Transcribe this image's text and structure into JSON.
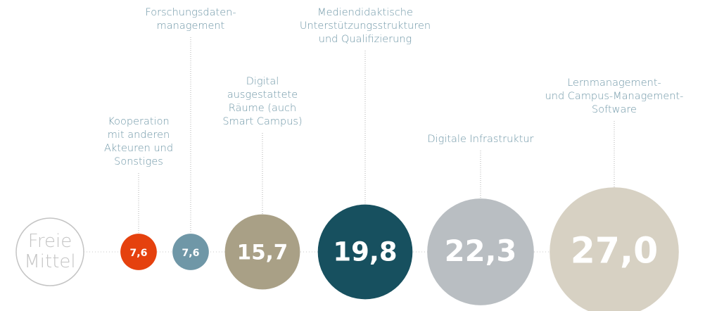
{
  "chart_data": {
    "type": "bubble",
    "categories": [
      "Freie\nMittel",
      "Kooperation\nmit anderen\nAkteuren und\nSonstiges",
      "Forschungsdaten-\nmanagement",
      "Digital\nausgestattete\nRäume (auch\nSmart Campus)",
      "Mediendidaktische\nUnterstützungsstrukturen\nund Qualifizierung",
      "Digitale Infrastruktur",
      "Lernmanagement-\nund Campus-Management-\nSoftware"
    ],
    "values": [
      null,
      7.6,
      7.6,
      15.7,
      19.8,
      22.3,
      27.0
    ],
    "value_labels": [
      null,
      "7,6",
      "7,6",
      "15,7",
      "19,8",
      "22,3",
      "27,0"
    ],
    "colors": [
      null,
      "#e5410e",
      "#6f97a7",
      "#a9a086",
      "#17505f",
      "#b9bec2",
      "#d7d1c3"
    ]
  }
}
